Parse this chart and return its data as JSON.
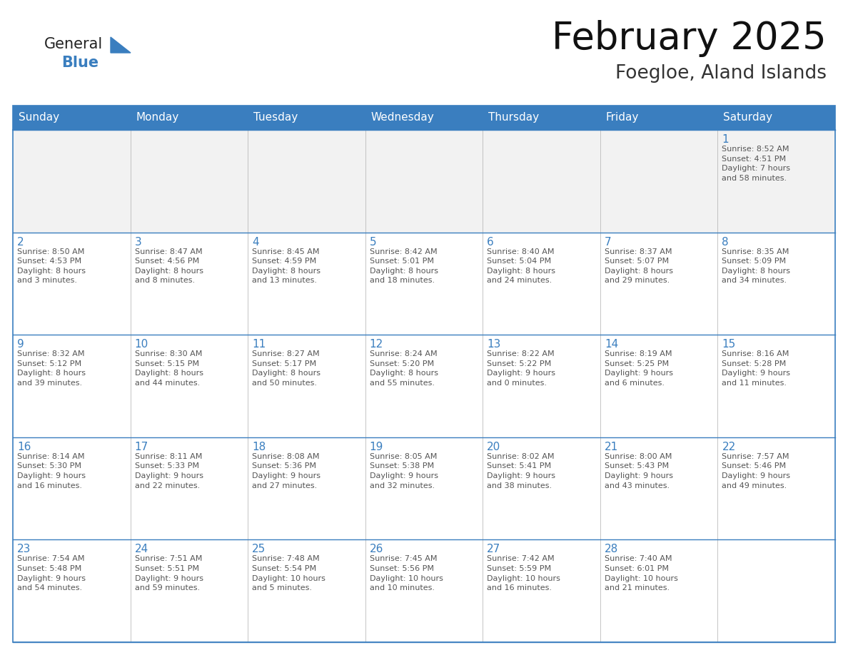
{
  "title": "February 2025",
  "subtitle": "Foegloe, Aland Islands",
  "header_bg_color": "#3a7ebf",
  "header_text_color": "#ffffff",
  "grid_color": "#3a7ebf",
  "day_number_color": "#3a7ebf",
  "text_color": "#555555",
  "border_color": "#3a7ebf",
  "light_bg_color": "#f2f2f2",
  "days_of_week": [
    "Sunday",
    "Monday",
    "Tuesday",
    "Wednesday",
    "Thursday",
    "Friday",
    "Saturday"
  ],
  "weeks": [
    [
      {
        "day": null,
        "info": null
      },
      {
        "day": null,
        "info": null
      },
      {
        "day": null,
        "info": null
      },
      {
        "day": null,
        "info": null
      },
      {
        "day": null,
        "info": null
      },
      {
        "day": null,
        "info": null
      },
      {
        "day": 1,
        "info": "Sunrise: 8:52 AM\nSunset: 4:51 PM\nDaylight: 7 hours\nand 58 minutes."
      }
    ],
    [
      {
        "day": 2,
        "info": "Sunrise: 8:50 AM\nSunset: 4:53 PM\nDaylight: 8 hours\nand 3 minutes."
      },
      {
        "day": 3,
        "info": "Sunrise: 8:47 AM\nSunset: 4:56 PM\nDaylight: 8 hours\nand 8 minutes."
      },
      {
        "day": 4,
        "info": "Sunrise: 8:45 AM\nSunset: 4:59 PM\nDaylight: 8 hours\nand 13 minutes."
      },
      {
        "day": 5,
        "info": "Sunrise: 8:42 AM\nSunset: 5:01 PM\nDaylight: 8 hours\nand 18 minutes."
      },
      {
        "day": 6,
        "info": "Sunrise: 8:40 AM\nSunset: 5:04 PM\nDaylight: 8 hours\nand 24 minutes."
      },
      {
        "day": 7,
        "info": "Sunrise: 8:37 AM\nSunset: 5:07 PM\nDaylight: 8 hours\nand 29 minutes."
      },
      {
        "day": 8,
        "info": "Sunrise: 8:35 AM\nSunset: 5:09 PM\nDaylight: 8 hours\nand 34 minutes."
      }
    ],
    [
      {
        "day": 9,
        "info": "Sunrise: 8:32 AM\nSunset: 5:12 PM\nDaylight: 8 hours\nand 39 minutes."
      },
      {
        "day": 10,
        "info": "Sunrise: 8:30 AM\nSunset: 5:15 PM\nDaylight: 8 hours\nand 44 minutes."
      },
      {
        "day": 11,
        "info": "Sunrise: 8:27 AM\nSunset: 5:17 PM\nDaylight: 8 hours\nand 50 minutes."
      },
      {
        "day": 12,
        "info": "Sunrise: 8:24 AM\nSunset: 5:20 PM\nDaylight: 8 hours\nand 55 minutes."
      },
      {
        "day": 13,
        "info": "Sunrise: 8:22 AM\nSunset: 5:22 PM\nDaylight: 9 hours\nand 0 minutes."
      },
      {
        "day": 14,
        "info": "Sunrise: 8:19 AM\nSunset: 5:25 PM\nDaylight: 9 hours\nand 6 minutes."
      },
      {
        "day": 15,
        "info": "Sunrise: 8:16 AM\nSunset: 5:28 PM\nDaylight: 9 hours\nand 11 minutes."
      }
    ],
    [
      {
        "day": 16,
        "info": "Sunrise: 8:14 AM\nSunset: 5:30 PM\nDaylight: 9 hours\nand 16 minutes."
      },
      {
        "day": 17,
        "info": "Sunrise: 8:11 AM\nSunset: 5:33 PM\nDaylight: 9 hours\nand 22 minutes."
      },
      {
        "day": 18,
        "info": "Sunrise: 8:08 AM\nSunset: 5:36 PM\nDaylight: 9 hours\nand 27 minutes."
      },
      {
        "day": 19,
        "info": "Sunrise: 8:05 AM\nSunset: 5:38 PM\nDaylight: 9 hours\nand 32 minutes."
      },
      {
        "day": 20,
        "info": "Sunrise: 8:02 AM\nSunset: 5:41 PM\nDaylight: 9 hours\nand 38 minutes."
      },
      {
        "day": 21,
        "info": "Sunrise: 8:00 AM\nSunset: 5:43 PM\nDaylight: 9 hours\nand 43 minutes."
      },
      {
        "day": 22,
        "info": "Sunrise: 7:57 AM\nSunset: 5:46 PM\nDaylight: 9 hours\nand 49 minutes."
      }
    ],
    [
      {
        "day": 23,
        "info": "Sunrise: 7:54 AM\nSunset: 5:48 PM\nDaylight: 9 hours\nand 54 minutes."
      },
      {
        "day": 24,
        "info": "Sunrise: 7:51 AM\nSunset: 5:51 PM\nDaylight: 9 hours\nand 59 minutes."
      },
      {
        "day": 25,
        "info": "Sunrise: 7:48 AM\nSunset: 5:54 PM\nDaylight: 10 hours\nand 5 minutes."
      },
      {
        "day": 26,
        "info": "Sunrise: 7:45 AM\nSunset: 5:56 PM\nDaylight: 10 hours\nand 10 minutes."
      },
      {
        "day": 27,
        "info": "Sunrise: 7:42 AM\nSunset: 5:59 PM\nDaylight: 10 hours\nand 16 minutes."
      },
      {
        "day": 28,
        "info": "Sunrise: 7:40 AM\nSunset: 6:01 PM\nDaylight: 10 hours\nand 21 minutes."
      },
      {
        "day": null,
        "info": null
      }
    ]
  ],
  "logo_general_color": "#222222",
  "logo_blue_color": "#3a7ebf",
  "logo_triangle_color": "#3a7ebf",
  "title_fontsize": 38,
  "subtitle_fontsize": 19,
  "header_fontsize": 11,
  "day_number_fontsize": 11,
  "cell_text_fontsize": 8.0
}
